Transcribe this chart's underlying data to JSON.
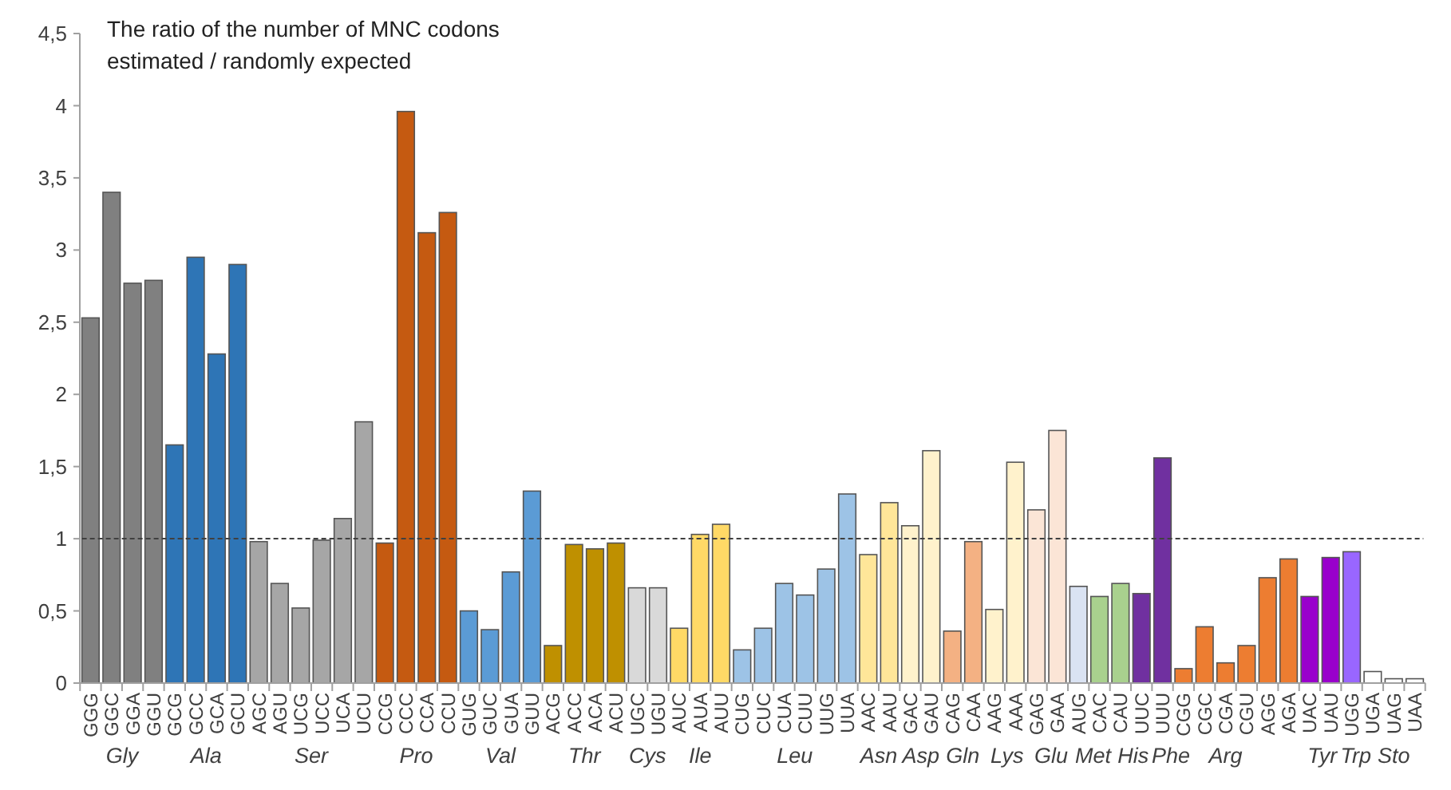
{
  "chart_data": {
    "type": "bar",
    "title": "The ratio of the number of MNC codons\nestimated / randomly expected",
    "categories": [
      "GGG",
      "GGC",
      "GGA",
      "GGU",
      "GCG",
      "GCC",
      "GCA",
      "GCU",
      "AGC",
      "AGU",
      "UCG",
      "UCC",
      "UCA",
      "UCU",
      "CCG",
      "CCC",
      "CCA",
      "CCU",
      "GUG",
      "GUC",
      "GUA",
      "GUU",
      "ACG",
      "ACC",
      "ACA",
      "ACU",
      "UGC",
      "UGU",
      "AUC",
      "AUA",
      "AUU",
      "CUG",
      "CUC",
      "CUA",
      "CUU",
      "UUG",
      "UUA",
      "AAC",
      "AAU",
      "GAC",
      "GAU",
      "CAG",
      "CAA",
      "AAG",
      "AAA",
      "GAG",
      "GAA",
      "AUG",
      "CAC",
      "CAU",
      "UUC",
      "UUU",
      "CGG",
      "CGC",
      "CGA",
      "CGU",
      "AGG",
      "AGA",
      "UAC",
      "UAU",
      "UGG",
      "UGA",
      "UAG",
      "UAA"
    ],
    "values": [
      2.53,
      3.4,
      2.77,
      2.79,
      1.65,
      2.95,
      2.28,
      2.9,
      0.98,
      0.69,
      0.52,
      0.99,
      1.14,
      1.81,
      0.97,
      3.96,
      3.12,
      3.26,
      0.5,
      0.37,
      0.77,
      1.33,
      0.26,
      0.96,
      0.93,
      0.97,
      0.66,
      0.66,
      0.38,
      1.03,
      1.1,
      0.23,
      0.38,
      0.69,
      0.61,
      0.79,
      1.31,
      0.89,
      1.25,
      1.09,
      1.61,
      0.36,
      0.98,
      0.51,
      1.53,
      1.2,
      1.75,
      0.67,
      0.6,
      0.69,
      0.62,
      1.56,
      0.1,
      0.39,
      0.14,
      0.26,
      0.73,
      0.86,
      0.6,
      0.87,
      0.91,
      0.08,
      0.03,
      0.03
    ],
    "colors": [
      "#808080",
      "#808080",
      "#808080",
      "#808080",
      "#2e75b6",
      "#2e75b6",
      "#2e75b6",
      "#2e75b6",
      "#a6a6a6",
      "#a6a6a6",
      "#a6a6a6",
      "#a6a6a6",
      "#a6a6a6",
      "#a6a6a6",
      "#c55a11",
      "#c55a11",
      "#c55a11",
      "#c55a11",
      "#5b9bd5",
      "#5b9bd5",
      "#5b9bd5",
      "#5b9bd5",
      "#bf9000",
      "#bf9000",
      "#bf9000",
      "#bf9000",
      "#d9d9d9",
      "#d9d9d9",
      "#ffd966",
      "#ffd966",
      "#ffd966",
      "#9dc3e6",
      "#9dc3e6",
      "#9dc3e6",
      "#9dc3e6",
      "#9dc3e6",
      "#9dc3e6",
      "#ffe699",
      "#ffe699",
      "#fff2cc",
      "#fff2cc",
      "#f4b183",
      "#f4b183",
      "#fff2cc",
      "#fff2cc",
      "#fbe5d6",
      "#fbe5d6",
      "#dae3f3",
      "#a9d18e",
      "#a9d18e",
      "#7030a0",
      "#7030a0",
      "#ed7d31",
      "#ed7d31",
      "#ed7d31",
      "#ed7d31",
      "#ed7d31",
      "#ed7d31",
      "#9900cc",
      "#9900cc",
      "#9966ff",
      "#ffffff",
      "#ffffff",
      "#ffffff"
    ],
    "ylim": [
      0,
      4.5
    ],
    "yticks": [
      0,
      {
        "value": 0.5,
        "label": "0,5"
      },
      1,
      {
        "value": 1.5,
        "label": "1,5"
      },
      2,
      {
        "value": 2.5,
        "label": "2,5"
      },
      3,
      {
        "value": 3.5,
        "label": "3,5"
      },
      4,
      {
        "value": 4.5,
        "label": "4,5"
      }
    ],
    "ref_lines": [
      {
        "axis": "y",
        "value": 1,
        "label": null,
        "color": "#404040",
        "line_style": "dashed"
      }
    ],
    "annotations": [
      "Gly",
      "Ala",
      "Ser",
      "Pro",
      "Val",
      "Thr",
      "Cys",
      "Ile",
      "Leu",
      "Asn",
      "Asp",
      "Gln",
      "Lys",
      "Glu",
      "Met",
      "His",
      "Phe",
      "Arg",
      "Tyr",
      "Trp",
      "Sto"
    ]
  }
}
